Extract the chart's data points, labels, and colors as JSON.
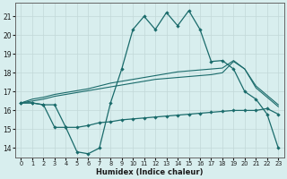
{
  "xlabel": "Humidex (Indice chaleur)",
  "xlim": [
    -0.5,
    23.5
  ],
  "ylim": [
    13.5,
    21.7
  ],
  "yticks": [
    14,
    15,
    16,
    17,
    18,
    19,
    20,
    21
  ],
  "xticks": [
    0,
    1,
    2,
    3,
    4,
    5,
    6,
    7,
    8,
    9,
    10,
    11,
    12,
    13,
    14,
    15,
    16,
    17,
    18,
    19,
    20,
    21,
    22,
    23
  ],
  "background_color": "#d8eeee",
  "grid_color": "#c2d8d8",
  "line_color": "#1a6b6b",
  "line1_x": [
    0,
    1,
    2,
    3,
    4,
    5,
    6,
    7,
    8,
    9,
    10,
    11,
    12,
    13,
    14,
    15,
    16,
    17,
    18,
    19,
    20,
    21,
    22,
    23
  ],
  "line1_y": [
    16.4,
    16.4,
    16.3,
    16.3,
    15.1,
    13.8,
    13.7,
    14.0,
    16.4,
    18.2,
    20.3,
    21.0,
    20.3,
    21.2,
    20.5,
    21.3,
    20.3,
    18.6,
    18.65,
    18.2,
    17.0,
    16.6,
    15.8,
    14.0
  ],
  "line2_x": [
    0,
    1,
    2,
    3,
    4,
    5,
    6,
    7,
    8,
    9,
    10,
    11,
    12,
    13,
    14,
    15,
    16,
    17,
    18,
    19,
    20,
    21,
    22,
    23
  ],
  "line2_y": [
    16.4,
    16.4,
    16.3,
    15.1,
    15.1,
    15.1,
    15.2,
    15.35,
    15.4,
    15.5,
    15.55,
    15.6,
    15.65,
    15.7,
    15.75,
    15.8,
    15.85,
    15.9,
    15.95,
    16.0,
    16.0,
    16.0,
    16.1,
    15.8
  ],
  "line3_x": [
    0,
    1,
    2,
    3,
    4,
    5,
    6,
    7,
    8,
    9,
    10,
    11,
    12,
    13,
    14,
    15,
    16,
    17,
    18,
    19,
    20,
    21,
    22,
    23
  ],
  "line3_y": [
    16.4,
    16.5,
    16.6,
    16.75,
    16.85,
    16.95,
    17.05,
    17.15,
    17.25,
    17.35,
    17.45,
    17.55,
    17.65,
    17.7,
    17.75,
    17.8,
    17.85,
    17.9,
    18.0,
    18.6,
    18.2,
    17.2,
    16.7,
    16.2
  ],
  "line4_x": [
    0,
    1,
    2,
    3,
    4,
    5,
    6,
    7,
    8,
    9,
    10,
    11,
    12,
    13,
    14,
    15,
    16,
    17,
    18,
    19,
    20,
    21,
    22,
    23
  ],
  "line4_y": [
    16.4,
    16.6,
    16.7,
    16.85,
    16.95,
    17.05,
    17.15,
    17.3,
    17.45,
    17.55,
    17.65,
    17.75,
    17.85,
    17.95,
    18.05,
    18.1,
    18.15,
    18.2,
    18.25,
    18.65,
    18.2,
    17.3,
    16.8,
    16.3
  ]
}
